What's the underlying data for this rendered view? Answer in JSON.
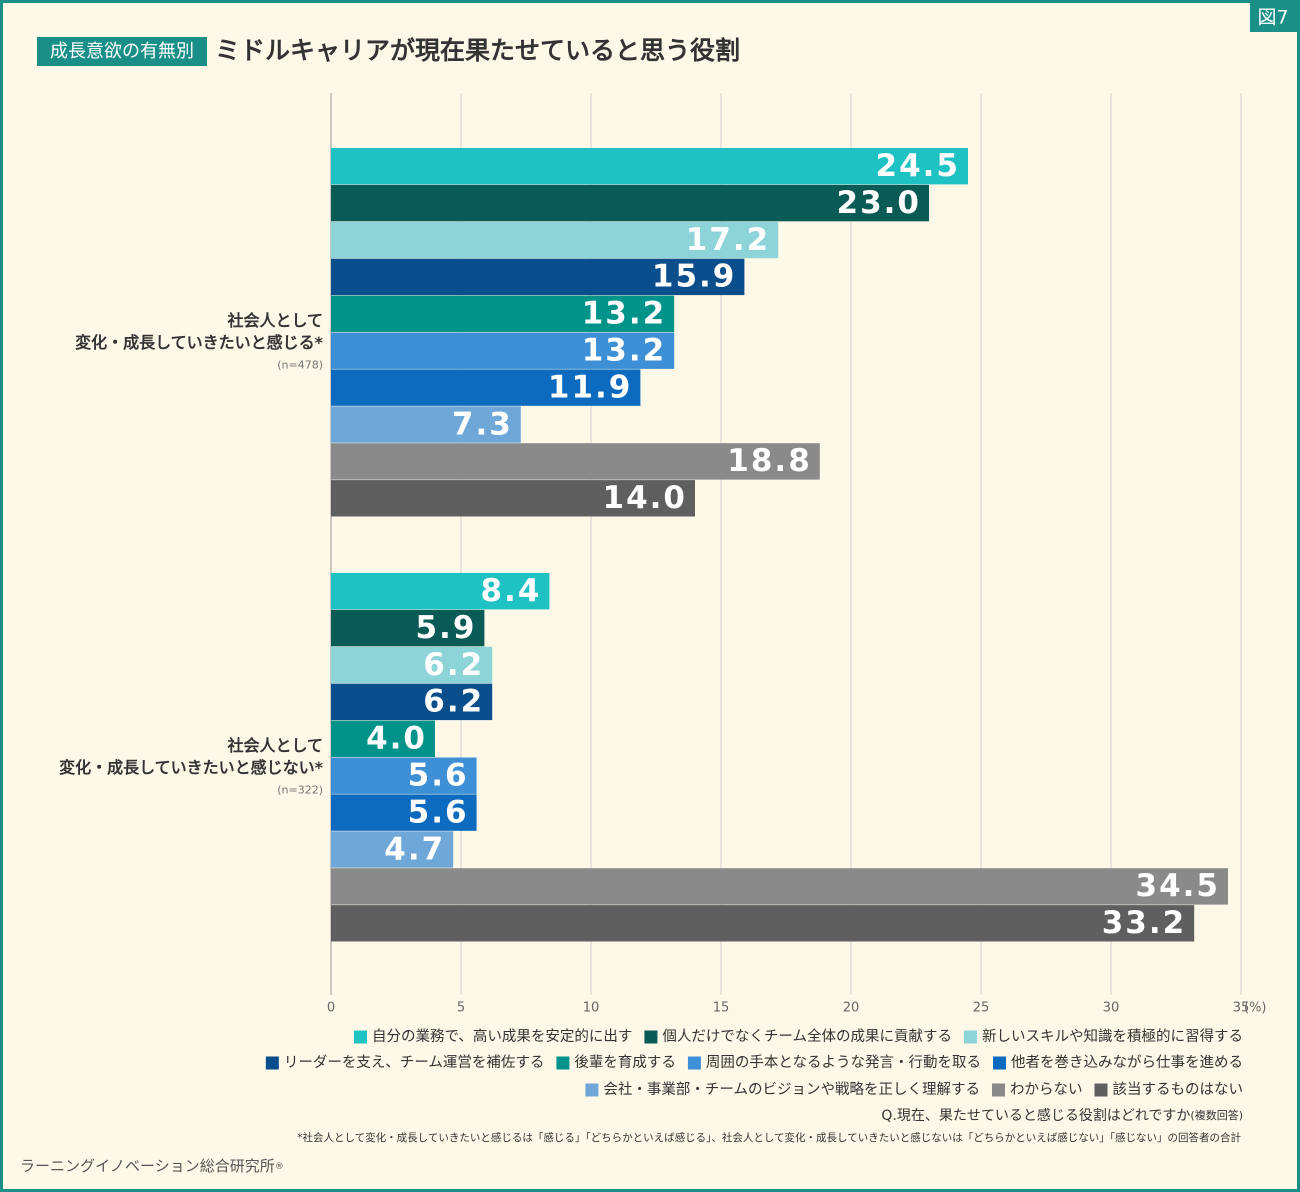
{
  "chart_data": {
    "type": "hbar",
    "figure_label": "図7",
    "tag": "成長意欲の有無別",
    "title": "ミドルキャリアが現在果たせていると思う役割",
    "categories": [
      {
        "label": [
          "社会人として",
          "変化・成長していきたいと感じる*"
        ],
        "n": "(n=478)"
      },
      {
        "label": [
          "社会人として",
          "変化・成長していきたいと感じない*"
        ],
        "n": "(n=322)"
      }
    ],
    "series": [
      {
        "name": "自分の業務で、高い成果を安定的に出す",
        "color": "#1fc2c2",
        "values": [
          24.5,
          8.4
        ],
        "value_labels": [
          "24.5",
          "8.4"
        ]
      },
      {
        "name": "個人だけでなくチーム全体の成果に貢献する",
        "color": "#0a5a55",
        "values": [
          23.0,
          5.9
        ],
        "value_labels": [
          "23.0",
          "5.9"
        ]
      },
      {
        "name": "新しいスキルや知識を積極的に習得する",
        "color": "#8dd4d8",
        "values": [
          17.2,
          6.2
        ],
        "value_labels": [
          "17.2",
          "6.2"
        ]
      },
      {
        "name": "リーダーを支え、チーム運営を補佐する",
        "color": "#0a4e8c",
        "values": [
          15.9,
          6.2
        ],
        "value_labels": [
          "15.9",
          "6.2"
        ]
      },
      {
        "name": "後輩を育成する",
        "color": "#00938a",
        "values": [
          13.2,
          4.0
        ],
        "value_labels": [
          "13.2",
          "4.0"
        ]
      },
      {
        "name": "周囲の手本となるような発言・行動を取る",
        "color": "#3d8fd6",
        "values": [
          13.2,
          5.6
        ],
        "value_labels": [
          "13.2",
          "5.6"
        ]
      },
      {
        "name": "他者を巻き込みながら仕事を進める",
        "color": "#0d6bbf",
        "values": [
          11.9,
          5.6
        ],
        "value_labels": [
          "11.9",
          "5.6"
        ]
      },
      {
        "name": "会社・事業部・チームのビジョンや戦略を正しく理解する",
        "color": "#6fa8d8",
        "values": [
          7.3,
          4.7
        ],
        "value_labels": [
          "7.3",
          "4.7"
        ]
      },
      {
        "name": "わからない",
        "color": "#8a8a8a",
        "values": [
          18.8,
          34.5
        ],
        "value_labels": [
          "18.8",
          "34.5"
        ]
      },
      {
        "name": "該当するものはない",
        "color": "#5f5f5f",
        "values": [
          14.0,
          33.2
        ],
        "value_labels": [
          "14.0",
          "33.2"
        ]
      }
    ],
    "xlim": [
      0,
      35
    ],
    "xticks": [
      0,
      5,
      10,
      15,
      20,
      25,
      30,
      35
    ],
    "x_unit": "(%)",
    "grid": true,
    "question": "Q.現在、果たせていると感じる役割はどれですか",
    "question_note": "(複数回答)",
    "footnote": "*社会人として変化・成長していきたいと感じるは「感じる」「どちらかといえば感じる」、社会人として変化・成長していきたいと感じないは「どちらかといえば感じない」「感じない」の回答者の合計",
    "source": "ラーニングイノベーション総合研究所",
    "source_mark": "®"
  }
}
